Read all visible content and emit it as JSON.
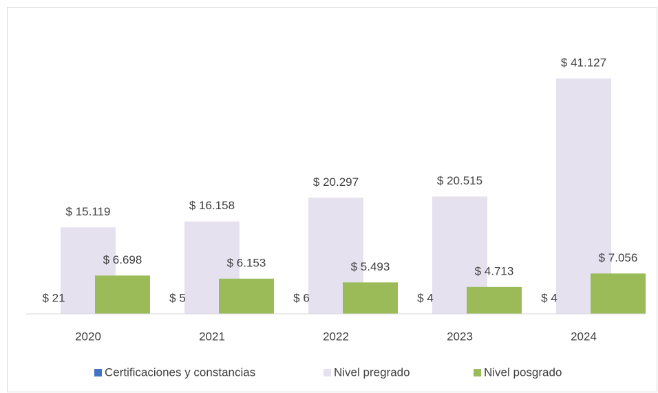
{
  "chart_data": {
    "type": "bar",
    "categories": [
      "2020",
      "2021",
      "2022",
      "2023",
      "2024"
    ],
    "series": [
      {
        "name": "Certificaciones y constancias",
        "color": "#4472c4",
        "values": [
          21,
          5,
          6,
          4,
          4
        ],
        "value_labels": [
          "$ 21",
          "$ 5",
          "$ 6",
          "$ 4",
          "$ 4"
        ]
      },
      {
        "name": "Nivel pregrado",
        "color": "#e6e1ee",
        "values": [
          15119,
          16158,
          20297,
          20515,
          41127
        ],
        "value_labels": [
          "$ 15.119",
          "$ 16.158",
          "$ 20.297",
          "$ 20.515",
          "$ 41.127"
        ]
      },
      {
        "name": "Nivel posgrado",
        "color": "#9bbb59",
        "values": [
          6698,
          6153,
          5493,
          4713,
          7056
        ],
        "value_labels": [
          "$ 6.698",
          "$ 6.153",
          "$ 5.493",
          "$ 4.713",
          "$ 7.056"
        ]
      }
    ],
    "ylim": [
      0,
      45000
    ],
    "legend": "bottom"
  }
}
